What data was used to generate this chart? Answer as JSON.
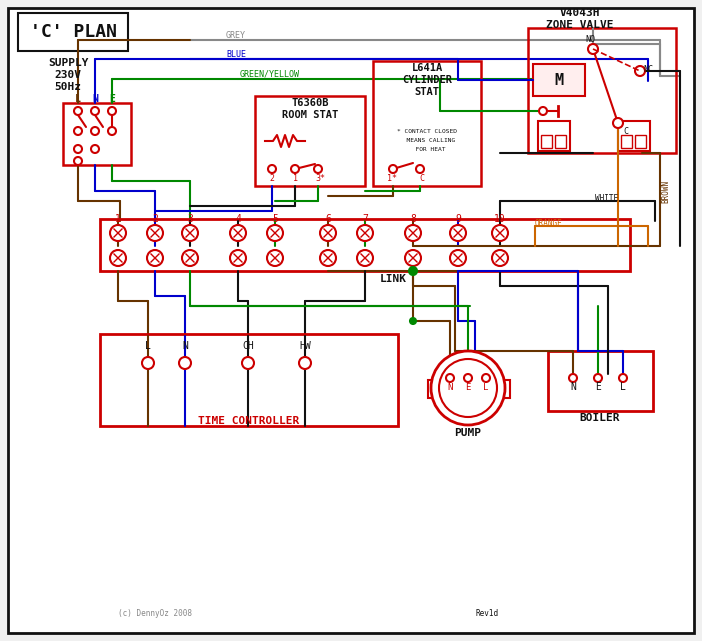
{
  "title": "'C' PLAN",
  "bg_color": "#f0f0f0",
  "red": "#cc0000",
  "blue": "#0000cc",
  "green": "#008800",
  "brown": "#663300",
  "grey": "#888888",
  "orange": "#cc6600",
  "black": "#111111",
  "terminal_labels": [
    "1",
    "2",
    "3",
    "4",
    "5",
    "6",
    "7",
    "8",
    "9",
    "10"
  ],
  "supply_text": [
    "SUPPLY",
    "230V",
    "50Hz"
  ],
  "zone_valve_title": [
    "V4043H",
    "ZONE VALVE"
  ],
  "room_stat_title": [
    "T6360B",
    "ROOM STAT"
  ],
  "cyl_stat_title": [
    "L641A",
    "CYLINDER",
    "STAT"
  ],
  "time_ctrl_label": "TIME CONTROLLER",
  "pump_label": "PUMP",
  "boiler_label": "BOILER",
  "link_label": "LINK",
  "copyright": "(c) DennyOz 2008",
  "rev": "Rev1d",
  "tc_terminals": [
    "L",
    "N",
    "CH",
    "HW"
  ]
}
